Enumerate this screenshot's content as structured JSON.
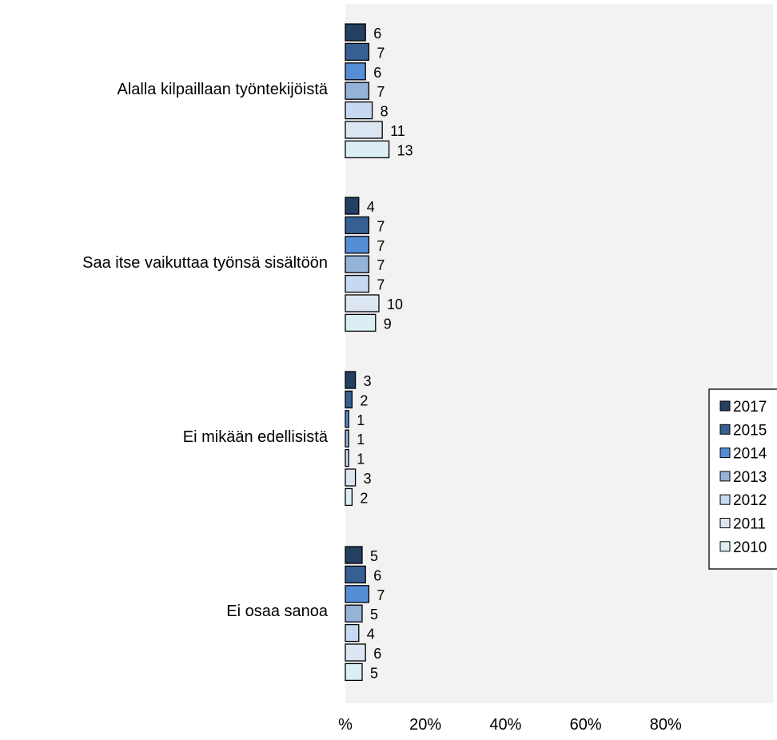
{
  "chart_data": {
    "type": "bar",
    "orientation": "horizontal",
    "categories": [
      "Alalla kilpaillaan työntekijöistä",
      "Saa itse vaikuttaa työnsä sisältöön",
      "Ei mikään edellisistä",
      "Ei osaa sanoa"
    ],
    "series": [
      {
        "name": "2017",
        "color": "#243f60",
        "values": [
          6,
          4,
          3,
          5
        ]
      },
      {
        "name": "2015",
        "color": "#376092",
        "values": [
          7,
          7,
          2,
          6
        ]
      },
      {
        "name": "2014",
        "color": "#558ed5",
        "values": [
          6,
          7,
          1,
          7
        ]
      },
      {
        "name": "2013",
        "color": "#95b3d7",
        "values": [
          7,
          7,
          1,
          5
        ]
      },
      {
        "name": "2012",
        "color": "#c6d9f1",
        "values": [
          8,
          7,
          1,
          4
        ]
      },
      {
        "name": "2011",
        "color": "#dce6f2",
        "values": [
          11,
          10,
          3,
          6
        ]
      },
      {
        "name": "2010",
        "color": "#dbeef4",
        "values": [
          13,
          9,
          2,
          5
        ]
      }
    ],
    "x_tick_labels": [
      "%",
      "20%",
      "40%",
      "60%",
      "80%"
    ],
    "xlim": [
      0,
      80
    ],
    "plot_background": "#f2f2f2",
    "bar_outline": "#000000",
    "grid": false,
    "legend_position": "right"
  }
}
